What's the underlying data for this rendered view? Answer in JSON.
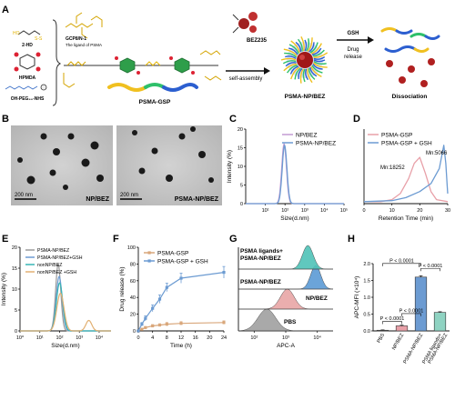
{
  "panels": {
    "A": "A",
    "B": "B",
    "C": "C",
    "D": "D",
    "E": "E",
    "F": "F",
    "G": "G",
    "H": "H"
  },
  "schematic": {
    "ligand_label": "GCP8/N-1",
    "ligand_sublabel": "The ligand of PSMA",
    "mol_2hd": "2-HD",
    "mol_hpmda": "HPMDA",
    "mol_peg": "OH-PEG₄₀-NHS",
    "polymer_label": "PSMA-GSP",
    "drug_label": "BEZ235",
    "assembly_label": "self-assembly",
    "np_label": "PSMA-NP/BEZ",
    "gsh_label": "GSH",
    "release_label_1": "Drug",
    "release_label_2": "release",
    "dissociation_label": "Dissociation"
  },
  "tem": {
    "left_label": "NP/BEZ",
    "right_label": "PSMA-NP/BEZ",
    "scale_left": "200 nm",
    "scale_right": "200 nm"
  },
  "colors": {
    "purple": "#c39bd3",
    "pink": "#e8a0a8",
    "blue": "#6c9bd2",
    "teal": "#39b5b5",
    "grey": "#9a9a9a",
    "orange": "#e2b072",
    "tan": "#d9a77b",
    "bar_pbs": "#9a9a9a",
    "bar_np": "#e8a0a8",
    "bar_psma": "#6c9bd2",
    "bar_lig": "#8fd3c2",
    "hist_pbs": "#a0a0a0",
    "hist_np": "#e8a6a6",
    "hist_psma": "#5b9bd5",
    "hist_lig": "#4fc3b8"
  },
  "chart_data": [
    {
      "panel": "C",
      "type": "line",
      "xlabel": "Size(d.nm)",
      "ylabel": "Intensity (%)",
      "x_scale": "log",
      "xlim": [
        1,
        100000
      ],
      "ylim": [
        0,
        20
      ],
      "x_ticks": [
        "10¹",
        "10²",
        "10³",
        "10⁴",
        "10⁵"
      ],
      "y_ticks": [
        "0",
        "5",
        "10",
        "15",
        "20"
      ],
      "legend_position": "top-right",
      "series": [
        {
          "name": "NP/BEZ",
          "color": "#c39bd3",
          "peak_x": 90,
          "peak_y": 16,
          "log_width": 0.12
        },
        {
          "name": "PSMA-NP/BEZ",
          "color": "#6c9bd2",
          "peak_x": 95,
          "peak_y": 15.6,
          "log_width": 0.12
        }
      ]
    },
    {
      "panel": "D",
      "type": "line",
      "xlabel": "Retention Time (min)",
      "xlim": [
        0,
        30
      ],
      "x_ticks": [
        "0",
        "10",
        "20",
        "30"
      ],
      "legend_position": "top-left",
      "annotations": [
        "Mn:18252",
        "Mn:5066"
      ],
      "series": [
        {
          "name": "PSMA-GSP",
          "color": "#e8a0a8",
          "points": [
            [
              0,
              0.02
            ],
            [
              6,
              0.02
            ],
            [
              10,
              0.04
            ],
            [
              13,
              0.1
            ],
            [
              16,
              0.25
            ],
            [
              18,
              0.4
            ],
            [
              20,
              0.46
            ],
            [
              22,
              0.3
            ],
            [
              24,
              0.12
            ],
            [
              26,
              0.04
            ],
            [
              30,
              0.02
            ]
          ]
        },
        {
          "name": "PSMA-GSP + GSH",
          "color": "#6c9bd2",
          "points": [
            [
              0,
              0.02
            ],
            [
              10,
              0.03
            ],
            [
              15,
              0.06
            ],
            [
              20,
              0.12
            ],
            [
              24,
              0.2
            ],
            [
              27,
              0.35
            ],
            [
              28.6,
              0.58
            ],
            [
              29.3,
              0.4
            ],
            [
              29.8,
              0.18
            ],
            [
              30,
              0.1
            ]
          ]
        }
      ]
    },
    {
      "panel": "E",
      "type": "line",
      "xlabel": "Size(d.nm)",
      "ylabel": "Intensity (%)",
      "x_scale": "log",
      "xlim": [
        1,
        100000
      ],
      "ylim": [
        0,
        20
      ],
      "x_ticks": [
        "10⁰",
        "10¹",
        "10²",
        "10³",
        "10⁴"
      ],
      "y_ticks": [
        "0",
        "5",
        "10",
        "15",
        "20"
      ],
      "legend_position": "top-left",
      "series": [
        {
          "name": "PSMA-NP/BEZ",
          "color": "#9a9a9a",
          "peak_x": 85,
          "peak_y": 16,
          "log_width": 0.13
        },
        {
          "name": "PSMA-NP/BEZ+GSH",
          "color": "#6c9bd2",
          "peak_x": 95,
          "peak_y": 13,
          "log_width": 0.15
        },
        {
          "name": "nonNP/BEZ",
          "color": "#39b5b5",
          "peak_x": 100,
          "peak_y": 11.5,
          "log_width": 0.16
        },
        {
          "name": "nonNP/BEZ +GSH",
          "color": "#e2b072",
          "peak_x": 110,
          "peak_y": 9,
          "log_width": 0.18,
          "second_peak_x": 3000,
          "second_peak_y": 2.5
        }
      ]
    },
    {
      "panel": "F",
      "type": "line",
      "xlabel": "Time (h)",
      "ylabel": "Drug release (%)",
      "xlim": [
        0,
        24
      ],
      "ylim": [
        0,
        100
      ],
      "x_ticks": [
        "0",
        "4",
        "8",
        "12",
        "16",
        "20",
        "24"
      ],
      "y_ticks": [
        "0",
        "20",
        "40",
        "60",
        "80",
        "100"
      ],
      "legend_position": "top-left",
      "series": [
        {
          "name": "PSMA-GSP",
          "color": "#d9a77b",
          "x": [
            0,
            1,
            2,
            4,
            6,
            8,
            12,
            24
          ],
          "y": [
            0,
            2,
            4,
            6,
            7,
            8,
            9,
            10
          ],
          "err": [
            0,
            1,
            1,
            1.5,
            1.5,
            2,
            2,
            2
          ]
        },
        {
          "name": "PSMA-GSP + GSH",
          "color": "#6c9bd2",
          "x": [
            0,
            1,
            2,
            4,
            6,
            8,
            12,
            24
          ],
          "y": [
            0,
            8,
            15,
            27,
            38,
            52,
            63,
            70
          ],
          "err": [
            0,
            2,
            3,
            4,
            5,
            5,
            6,
            7
          ]
        }
      ]
    },
    {
      "panel": "G",
      "type": "histogram",
      "xlabel": "APC-A",
      "x_scale": "log",
      "x_ticks": [
        "10²",
        "10³",
        "10⁴"
      ],
      "series": [
        {
          "name": "PBS",
          "color": "#a0a0a0"
        },
        {
          "name": "NP/BEZ",
          "color": "#e8a6a6"
        },
        {
          "name": "PSMA-NP/BEZ",
          "color": "#5b9bd5"
        },
        {
          "name": "PSMA ligands+ PSMA-NP/BEZ",
          "color": "#4fc3b8"
        }
      ],
      "labels": [
        "PSMA ligands+",
        "PSMA-NP/BEZ",
        "PSMA-NP/BEZ",
        "NP/BEZ",
        "PBS"
      ]
    },
    {
      "panel": "H",
      "type": "bar",
      "ylabel": "APC-MFI (×10⁴)",
      "ylim": [
        0,
        2.0
      ],
      "y_ticks": [
        "0.0",
        "0.5",
        "1.0",
        "1.5",
        "2.0"
      ],
      "categories": [
        "PBS",
        "NP/BEZ",
        "PSMA-NP/BEZ",
        "PSMA ligands+ PSMA-NP/BEZ"
      ],
      "category_lines": [
        [
          "PBS"
        ],
        [
          "NP/BEZ"
        ],
        [
          "PSMA-NP/BEZ"
        ],
        [
          "PSMA ligands+",
          "PSMA-NP/BEZ"
        ]
      ],
      "values": [
        0.02,
        0.15,
        1.6,
        0.55
      ],
      "errors": [
        0.01,
        0.02,
        0.04,
        0.02
      ],
      "significance": [
        {
          "from": 0,
          "to": 1,
          "label": "P < 0.0001"
        },
        {
          "from": 1,
          "to": 2,
          "label": "P < 0.0001"
        },
        {
          "from": 2,
          "to": 3,
          "label": "P < 0.0001"
        },
        {
          "from": 0,
          "to": 2,
          "label": "P < 0.0001"
        }
      ]
    }
  ]
}
